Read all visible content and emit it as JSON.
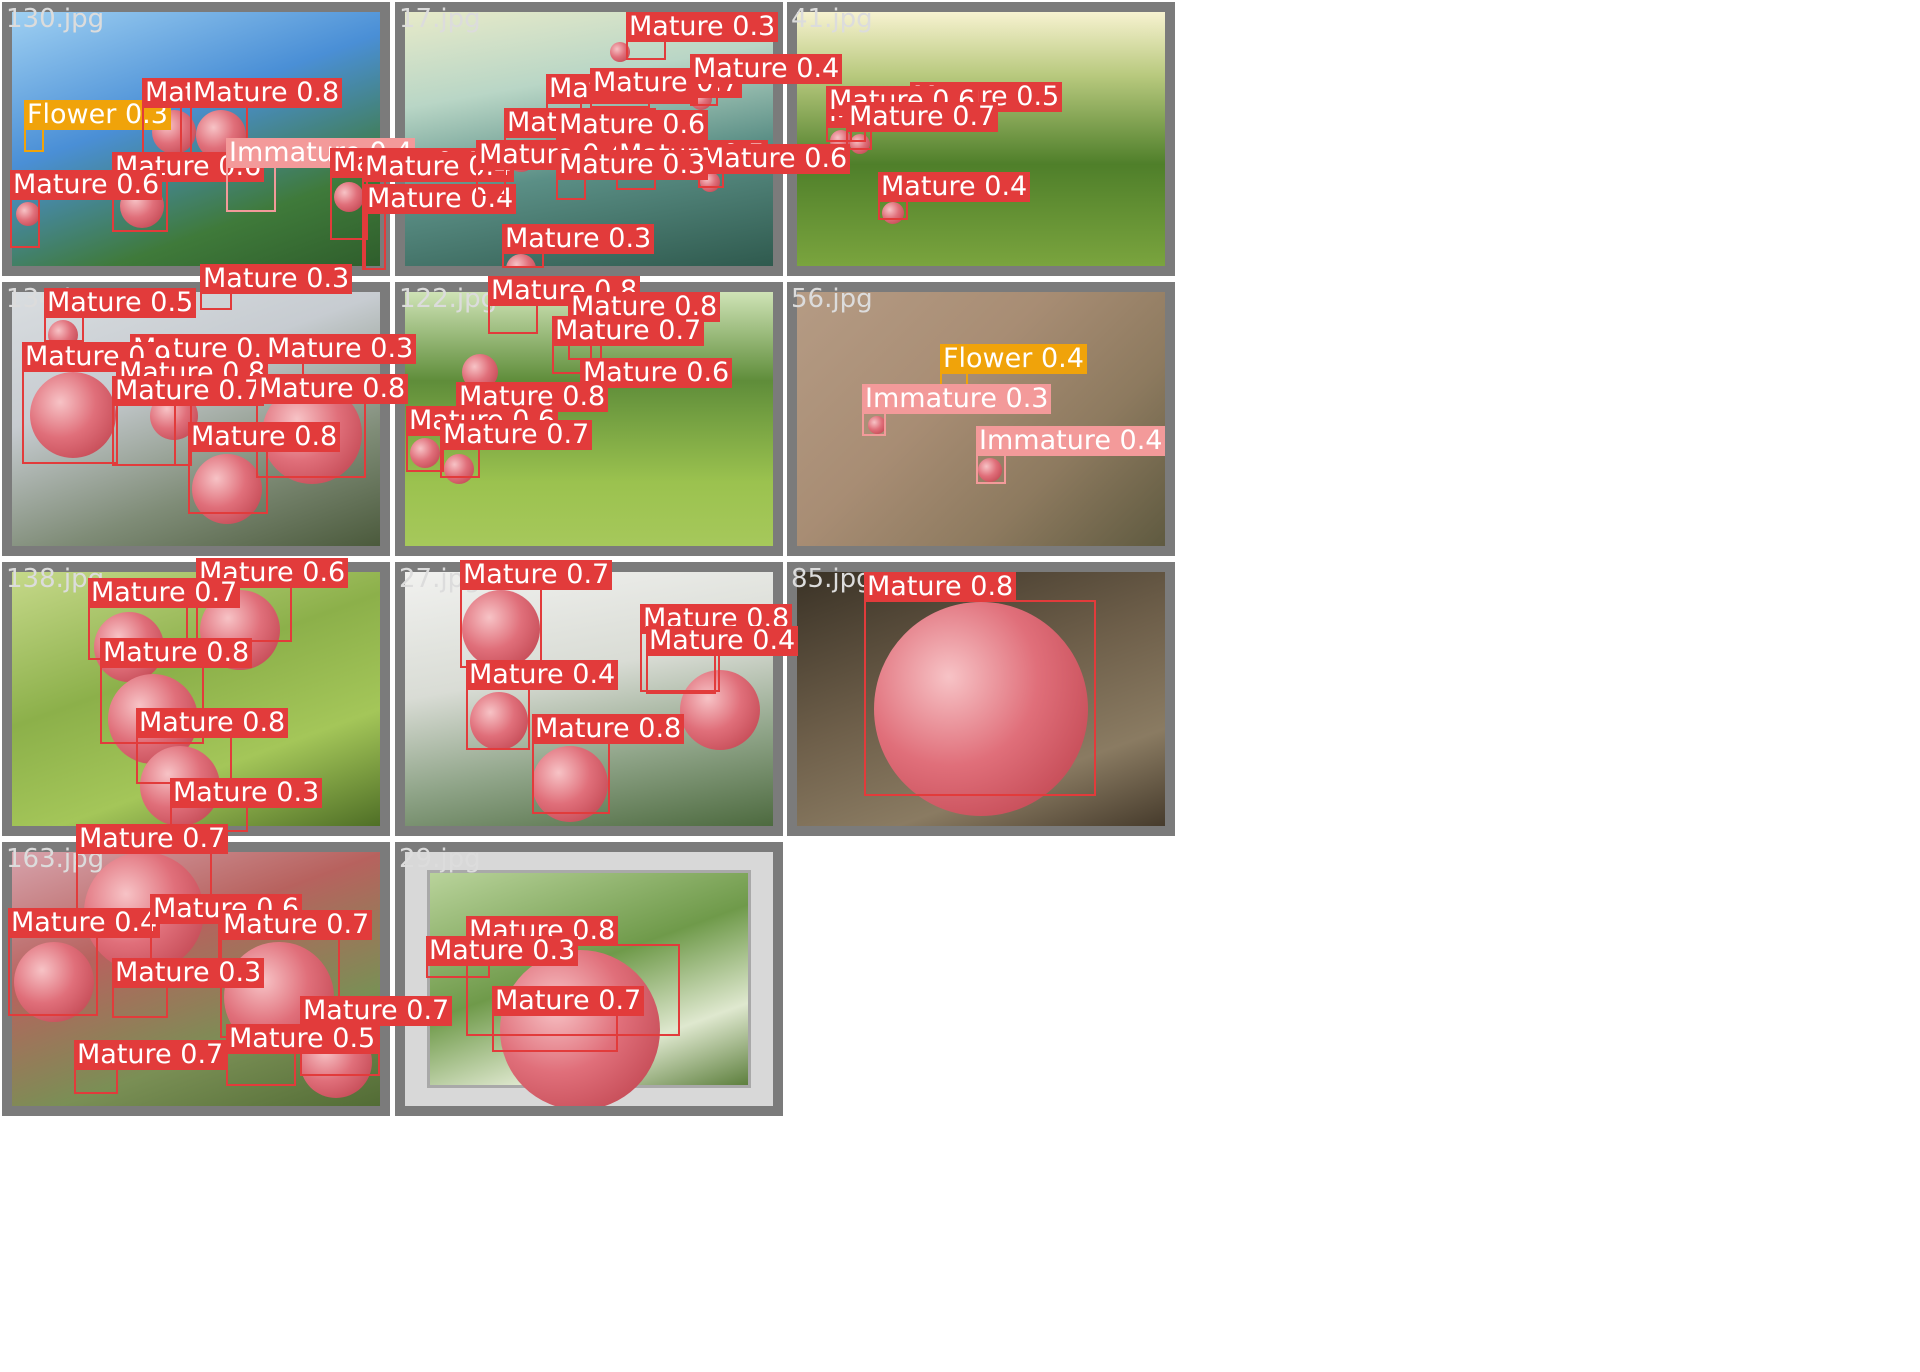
{
  "tiles": [
    {
      "filename": "130.jpg",
      "detections": [
        {
          "class": "Flower",
          "score": "0.3"
        },
        {
          "class": "Mature",
          "score": "0.8"
        },
        {
          "class": "Mature",
          "score": "0.8"
        },
        {
          "class": "Mature",
          "score": "0.6"
        },
        {
          "class": "Mature",
          "score": "0.6"
        },
        {
          "class": "Immature",
          "score": "0.4"
        },
        {
          "class": "Mature",
          "score": "0.4"
        },
        {
          "class": "Mature",
          "score": "0.4"
        },
        {
          "class": "Mature",
          "score": "0.4"
        }
      ]
    },
    {
      "filename": "17.jpg",
      "detections": [
        {
          "class": "Mature",
          "score": "0.3"
        },
        {
          "class": "Mature",
          "score": "0.7"
        },
        {
          "class": "Mature",
          "score": "0.7"
        },
        {
          "class": "Mature",
          "score": "0.4"
        },
        {
          "class": "Mature",
          "score": "0.6"
        },
        {
          "class": "Mature",
          "score": "0.6"
        },
        {
          "class": "Mature",
          "score": "0.4"
        },
        {
          "class": "Mature",
          "score": "0.5"
        },
        {
          "class": "Mature",
          "score": "0.6"
        },
        {
          "class": "Mature",
          "score": "0.3"
        },
        {
          "class": "Mature",
          "score": "0.3"
        }
      ]
    },
    {
      "filename": "41.jpg",
      "detections": [
        {
          "class": "Mature",
          "score": "0.5"
        },
        {
          "class": "Mature",
          "score": "0.5"
        },
        {
          "class": "Mature",
          "score": "0.6"
        },
        {
          "class": "Mature",
          "score": "0.7"
        },
        {
          "class": "Mature",
          "score": "0.4"
        }
      ]
    },
    {
      "filename": "134.jpg",
      "detections": [
        {
          "class": "Mature",
          "score": "0.3"
        },
        {
          "class": "Mature",
          "score": "0.5"
        },
        {
          "class": "Mature",
          "score": "0.5"
        },
        {
          "class": "Mature",
          "score": "0.3"
        },
        {
          "class": "Mature",
          "score": "0.9"
        },
        {
          "class": "Mature",
          "score": "0.8"
        },
        {
          "class": "Mature",
          "score": "0.7"
        },
        {
          "class": "Mature",
          "score": "0.8"
        },
        {
          "class": "Mature",
          "score": "0.8"
        }
      ]
    },
    {
      "filename": "122.jpg",
      "detections": [
        {
          "class": "Mature",
          "score": "0.8"
        },
        {
          "class": "Mature",
          "score": "0.8"
        },
        {
          "class": "Mature",
          "score": "0.7"
        },
        {
          "class": "Mature",
          "score": "0.6"
        },
        {
          "class": "Mature",
          "score": "0.8"
        },
        {
          "class": "Mature",
          "score": "0.6"
        },
        {
          "class": "Mature",
          "score": "0.7"
        }
      ]
    },
    {
      "filename": "56.jpg",
      "detections": [
        {
          "class": "Flower",
          "score": "0.4"
        },
        {
          "class": "Immature",
          "score": "0.3"
        },
        {
          "class": "Immature",
          "score": "0.4"
        }
      ]
    },
    {
      "filename": "138.jpg",
      "detections": [
        {
          "class": "Mature",
          "score": "0.6"
        },
        {
          "class": "Mature",
          "score": "0.7"
        },
        {
          "class": "Mature",
          "score": "0.8"
        },
        {
          "class": "Mature",
          "score": "0.8"
        },
        {
          "class": "Mature",
          "score": "0.3"
        }
      ]
    },
    {
      "filename": "27.jpg",
      "detections": [
        {
          "class": "Mature",
          "score": "0.7"
        },
        {
          "class": "Mature",
          "score": "0.4"
        },
        {
          "class": "Mature",
          "score": "0.8"
        },
        {
          "class": "Mature",
          "score": "0.4"
        },
        {
          "class": "Mature",
          "score": "0.8"
        }
      ]
    },
    {
      "filename": "85.jpg",
      "detections": [
        {
          "class": "Mature",
          "score": "0.8"
        }
      ]
    },
    {
      "filename": "163.jpg",
      "detections": [
        {
          "class": "Mature",
          "score": "0.7"
        },
        {
          "class": "Mature",
          "score": "0.4"
        },
        {
          "class": "Mature",
          "score": "0.6"
        },
        {
          "class": "Mature",
          "score": "0.7"
        },
        {
          "class": "Mature",
          "score": "0.3"
        },
        {
          "class": "Mature",
          "score": "0.7"
        },
        {
          "class": "Mature",
          "score": "0.5"
        },
        {
          "class": "Mature",
          "score": "0.7"
        }
      ]
    },
    {
      "filename": "29.jpg",
      "detections": [
        {
          "class": "Mature",
          "score": "0.8"
        },
        {
          "class": "Mature",
          "score": "0.3"
        },
        {
          "class": "Mature",
          "score": "0.7"
        }
      ]
    }
  ]
}
